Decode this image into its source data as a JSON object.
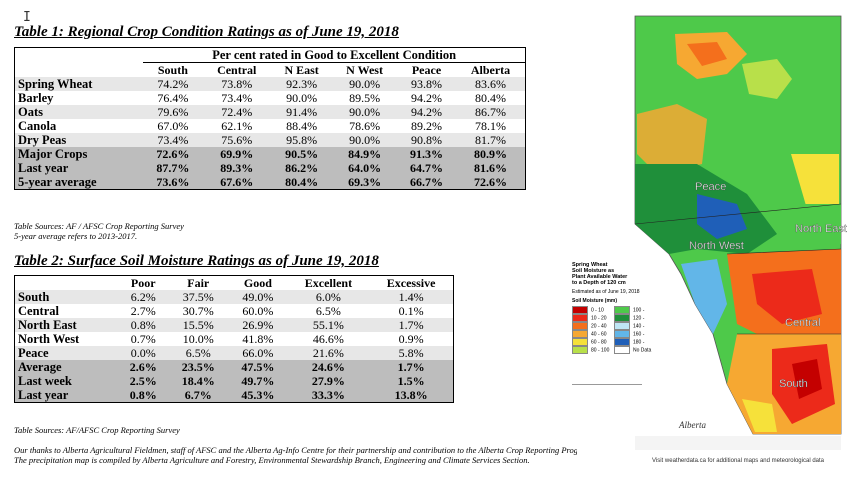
{
  "cursor_glyph": "I",
  "table1": {
    "title": "Table 1: Regional Crop Condition Ratings as of June 19, 2018",
    "span_header": "Per cent rated in Good to Excellent Condition",
    "columns": [
      "South",
      "Central",
      "N East",
      "N West",
      "Peace",
      "Alberta"
    ],
    "rows": [
      {
        "label": "Spring Wheat",
        "values": [
          "74.2%",
          "73.8%",
          "92.3%",
          "90.0%",
          "93.8%",
          "83.6%"
        ]
      },
      {
        "label": "Barley",
        "values": [
          "76.4%",
          "73.4%",
          "90.0%",
          "89.5%",
          "94.2%",
          "80.4%"
        ]
      },
      {
        "label": "Oats",
        "values": [
          "79.6%",
          "72.4%",
          "91.4%",
          "90.0%",
          "94.2%",
          "86.7%"
        ]
      },
      {
        "label": "Canola",
        "values": [
          "67.0%",
          "62.1%",
          "88.4%",
          "78.6%",
          "89.2%",
          "78.1%"
        ]
      },
      {
        "label": "Dry Peas",
        "values": [
          "73.4%",
          "75.6%",
          "95.8%",
          "90.0%",
          "90.8%",
          "81.7%"
        ]
      },
      {
        "label": "Major Crops",
        "values": [
          "72.6%",
          "69.9%",
          "90.5%",
          "84.9%",
          "91.3%",
          "80.9%"
        ]
      },
      {
        "label": "Last year",
        "values": [
          "87.7%",
          "89.3%",
          "86.2%",
          "64.0%",
          "64.7%",
          "81.6%"
        ]
      },
      {
        "label": "5-year average",
        "values": [
          "73.6%",
          "67.6%",
          "80.4%",
          "69.3%",
          "66.7%",
          "72.6%"
        ]
      }
    ],
    "source_line1": "Table Sources: AF / AFSC Crop Reporting Survey",
    "source_line2": "5-year average refers to 2013-2017."
  },
  "table2": {
    "title": "Table 2: Surface Soil Moisture Ratings as of June 19, 2018",
    "columns": [
      "Poor",
      "Fair",
      "Good",
      "Excellent",
      "Excessive"
    ],
    "rows": [
      {
        "label": "South",
        "values": [
          "6.2%",
          "37.5%",
          "49.0%",
          "6.0%",
          "1.4%"
        ]
      },
      {
        "label": "Central",
        "values": [
          "2.7%",
          "30.7%",
          "60.0%",
          "6.5%",
          "0.1%"
        ]
      },
      {
        "label": "North East",
        "values": [
          "0.8%",
          "15.5%",
          "26.9%",
          "55.1%",
          "1.7%"
        ]
      },
      {
        "label": "North West",
        "values": [
          "0.7%",
          "10.0%",
          "41.8%",
          "46.6%",
          "0.9%"
        ]
      },
      {
        "label": "Peace",
        "values": [
          "0.0%",
          "6.5%",
          "66.0%",
          "21.6%",
          "5.8%"
        ]
      },
      {
        "label": "Average",
        "values": [
          "2.6%",
          "23.5%",
          "47.5%",
          "24.6%",
          "1.7%"
        ]
      },
      {
        "label": "Last week",
        "values": [
          "2.5%",
          "18.4%",
          "49.7%",
          "27.9%",
          "1.5%"
        ]
      },
      {
        "label": "Last year",
        "values": [
          "0.8%",
          "6.7%",
          "45.3%",
          "33.3%",
          "13.8%"
        ]
      }
    ],
    "source": "Table Sources: AF/AFSC Crop Reporting Survey"
  },
  "thanks_line1": "Our thanks to Alberta Agricultural Fieldmen, staff of AFSC and the Alberta Ag-Info Centre for their partnership and contribution to the Alberta Crop Reporting Program.",
  "thanks_line2": "The precipitation map is compiled by Alberta Agriculture and Forestry, Environmental Stewardship Branch, Engineering and Climate Services Section.",
  "map": {
    "legend_title": "Spring Wheat\nSoil Moisture as\nPlant Available Water\nto a Depth of 120 cm",
    "estimated": "Estimated as of June 19, 2018",
    "legend_head": "Soil Moisture (mm)",
    "legend_items": [
      {
        "label": "0 - 10",
        "color": "#c40000"
      },
      {
        "label": "10 - 20",
        "color": "#ec2a1a"
      },
      {
        "label": "20 - 40",
        "color": "#f46f1c"
      },
      {
        "label": "40 - 60",
        "color": "#f6a832"
      },
      {
        "label": "60 - 80",
        "color": "#f6e13a"
      },
      {
        "label": "80 - 100",
        "color": "#b8e04a"
      },
      {
        "label": "100 - 120",
        "color": "#4ec94a"
      },
      {
        "label": "120 - 140",
        "color": "#1f8f3a"
      },
      {
        "label": "140 - 160",
        "color": "#bfe6f5"
      },
      {
        "label": "160 - 180",
        "color": "#62b6e8"
      },
      {
        "label": "180 - 200",
        "color": "#1f5fb8"
      },
      {
        "label": "No Data",
        "color": "#ffffff"
      }
    ],
    "regions": [
      "Peace",
      "North West",
      "North East",
      "Central",
      "South"
    ],
    "footer": "Visit weatherdata.ca for additional maps and meteorological data",
    "brand": "Alberta"
  }
}
